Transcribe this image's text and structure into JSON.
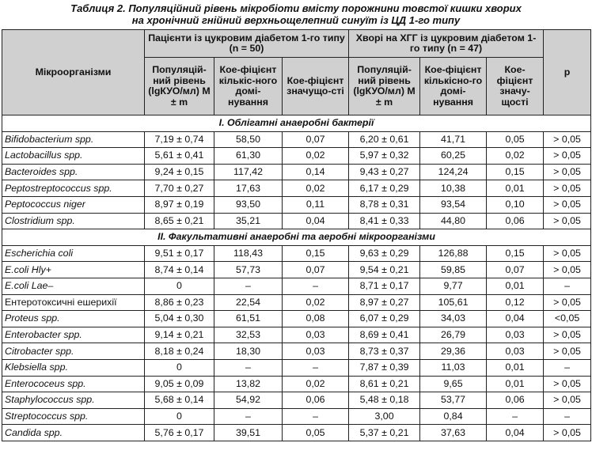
{
  "caption": {
    "line1": "Таблиця 2. Популяційний рівень мікробіоти вмісту порожнини товстої кишки хворих",
    "line2": "на хронічний гнійний верхньощелепний синуїт із ЦД 1-го типу"
  },
  "headers": {
    "microorganisms": "Мікроорганізми",
    "group1": "Пацієнти із цукровим діабетом 1-го типу (n = 50)",
    "group2": "Хворі на ХГГ із цукровим діабетом 1-го типу (n = 47)",
    "pop_level": "Популяцій-ний рівень (lgКУО/мл) M ± m",
    "dominance": "Кое-фіцієнт кількіс-ного домі-нування",
    "significance1": "Кое-фіцієнт значущо-сті",
    "dominance2": "Кое-фіцієнт кількісно-го домі-нування",
    "significance2": "Кое-фіцієнт значу-щості",
    "p": "p"
  },
  "sections": [
    {
      "title": "I. Облігатні анаеробні бактерії",
      "rows": [
        {
          "name": "Bifidobacterium spp.",
          "italic": true,
          "a1": "7,19 ± 0,74",
          "a2": "58,50",
          "a3": "0,07",
          "b1": "6,20 ± 0,61",
          "b2": "41,71",
          "b3": "0,05",
          "p": "> 0,05"
        },
        {
          "name": "Lactobacillus spp.",
          "italic": true,
          "a1": "5,61 ± 0,41",
          "a2": "61,30",
          "a3": "0,02",
          "b1": "5,97 ± 0,32",
          "b2": "60,25",
          "b3": "0,02",
          "p": "> 0,05"
        },
        {
          "name": "Bacteroides spp.",
          "italic": true,
          "a1": "9,24 ± 0,15",
          "a2": "117,42",
          "a3": "0,14",
          "b1": "9,43 ± 0,27",
          "b2": "124,24",
          "b3": "0,15",
          "p": "> 0,05"
        },
        {
          "name": "Peptostreptococcus spp.",
          "italic": true,
          "a1": "7,70 ± 0,27",
          "a2": "17,63",
          "a3": "0,02",
          "b1": "6,17 ± 0,29",
          "b2": "10,38",
          "b3": "0,01",
          "p": "> 0,05"
        },
        {
          "name": "Peptococcus niger",
          "italic": true,
          "a1": "8,97 ± 0,19",
          "a2": "93,50",
          "a3": "0,11",
          "b1": "8,78 ± 0,31",
          "b2": "93,54",
          "b3": "0,10",
          "p": "> 0,05"
        },
        {
          "name": "Clostridium spp.",
          "italic": true,
          "a1": "8,65 ± 0,21",
          "a2": "35,21",
          "a3": "0,04",
          "b1": "8,41 ± 0,33",
          "b2": "44,80",
          "b3": "0,06",
          "p": "> 0,05"
        }
      ]
    },
    {
      "title": "II. Факультативні анаеробні та аеробні мікроорганізми",
      "rows": [
        {
          "name": "Escherichia coli",
          "italic": true,
          "a1": "9,51 ± 0,17",
          "a2": "118,43",
          "a3": "0,15",
          "b1": "9,63 ± 0,29",
          "b2": "126,88",
          "b3": "0,15",
          "p": "> 0,05"
        },
        {
          "name": "E.coli Hly+",
          "italic": true,
          "a1": "8,74 ± 0,14",
          "a2": "57,73",
          "a3": "0,07",
          "b1": "9,54 ± 0,21",
          "b2": "59,85",
          "b3": "0,07",
          "p": "> 0,05"
        },
        {
          "name": "E.coli Lae–",
          "italic": true,
          "a1": "0",
          "a2": "–",
          "a3": "–",
          "b1": "8,71 ± 0,17",
          "b2": "9,77",
          "b3": "0,01",
          "p": "–"
        },
        {
          "name": "Ентеротоксичні ешерихії",
          "italic": false,
          "a1": "8,86 ± 0,23",
          "a2": "22,54",
          "a3": "0,02",
          "b1": "8,97 ± 0,27",
          "b2": "105,61",
          "b3": "0,12",
          "p": "> 0,05"
        },
        {
          "name": "Proteus spp.",
          "italic": true,
          "a1": "5,04 ± 0,30",
          "a2": "61,51",
          "a3": "0,08",
          "b1": "6,07 ± 0,29",
          "b2": "34,03",
          "b3": "0,04",
          "p": "<0,05"
        },
        {
          "name": "Enterobacter spp.",
          "italic": true,
          "a1": "9,14 ± 0,21",
          "a2": "32,53",
          "a3": "0,03",
          "b1": "8,69 ± 0,41",
          "b2": "26,79",
          "b3": "0,03",
          "p": "> 0,05"
        },
        {
          "name": "Citrobacter spp.",
          "italic": true,
          "a1": "8,18 ± 0,24",
          "a2": "18,30",
          "a3": "0,03",
          "b1": "8,73 ± 0,37",
          "b2": "29,36",
          "b3": "0,03",
          "p": "> 0,05"
        },
        {
          "name": "Klebsiella spp.",
          "italic": true,
          "a1": "0",
          "a2": "–",
          "a3": "–",
          "b1": "7,87 ± 0,39",
          "b2": "11,03",
          "b3": "0,01",
          "p": "–"
        },
        {
          "name": "Enterococeus spp.",
          "italic": true,
          "a1": "9,05 ± 0,09",
          "a2": "13,82",
          "a3": "0,02",
          "b1": "8,61 ± 0,21",
          "b2": "9,65",
          "b3": "0,01",
          "p": "> 0,05"
        },
        {
          "name": "Staphylococcus spp.",
          "italic": true,
          "a1": "5,68 ± 0,14",
          "a2": "54,92",
          "a3": "0,06",
          "b1": "5,48 ± 0,18",
          "b2": "53,77",
          "b3": "0,06",
          "p": "> 0,05"
        },
        {
          "name": "Streptococcus spp.",
          "italic": true,
          "a1": "0",
          "a2": "–",
          "a3": "–",
          "b1": "3,00",
          "b2": "0,84",
          "b3": "–",
          "p": "–"
        },
        {
          "name": "Candida spp.",
          "italic": true,
          "a1": "5,76 ± 0,17",
          "a2": "39,51",
          "a3": "0,05",
          "b1": "5,37 ± 0,21",
          "b2": "37,63",
          "b3": "0,04",
          "p": "> 0,05"
        }
      ]
    }
  ]
}
